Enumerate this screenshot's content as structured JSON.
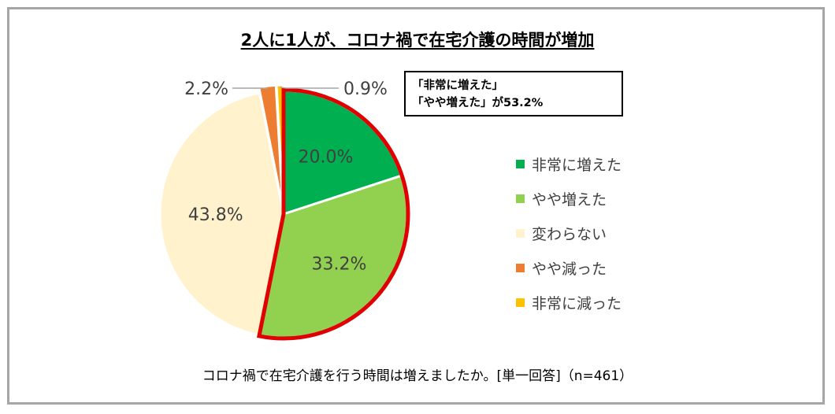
{
  "title": "2人に1人が、コロナ禍で在宅介護の時間が増加",
  "callout": {
    "line1": "「非常に増えた」",
    "line2": "「やや増えた」が53.2%"
  },
  "question": "コロナ禍で在宅介護を行う時間は増えましたか。[単一回答]（n=461）",
  "chart_data": {
    "type": "pie",
    "title": "2人に1人が、コロナ禍で在宅介護の時間が増加",
    "categories": [
      "非常に増えた",
      "やや増えた",
      "変わらない",
      "やや減った",
      "非常に減った"
    ],
    "values": [
      20.0,
      33.2,
      43.8,
      2.2,
      0.9
    ],
    "labels": [
      "20.0%",
      "33.2%",
      "43.8%",
      "2.2%",
      "0.9%"
    ],
    "colors": [
      "#00b050",
      "#92d050",
      "#fff2cc",
      "#ed7d31",
      "#ffc000"
    ],
    "highlight_color": "#e00000",
    "highlighted": [
      "非常に増えた",
      "やや増えた"
    ],
    "legend_position": "right",
    "n": 461
  }
}
